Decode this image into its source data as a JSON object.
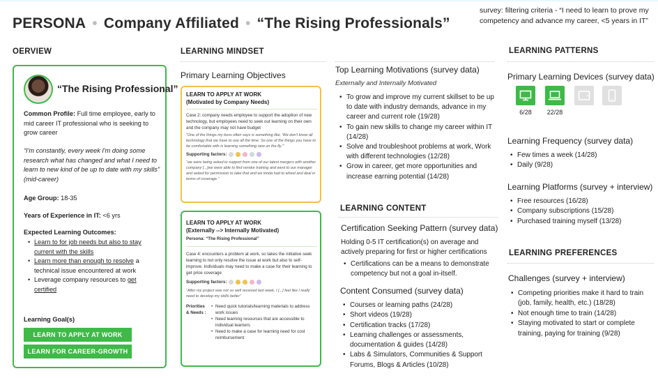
{
  "header": {
    "part1": "PERSONA",
    "part2": "Company Affiliated",
    "part3": "“The Rising Professionals”",
    "separator": "•",
    "survey_note": "survey: filtering criteria - “I need to learn to prove my competency and advance my career, <5 years in IT”"
  },
  "overview": {
    "heading": "OERVIEW",
    "name": "“The Rising Professional”",
    "common_profile_label": "Common Profile:",
    "common_profile_text": "Full time employee, early to mid career IT professional who is seeking to grow career",
    "quote": "“I'm constantly, every week I'm doing some research what has changed and what I need to learn to new kind of be up to date with my skills” (mid-career)",
    "age_label": "Age Group:",
    "age_value": "18-35",
    "years_label": "Years of Experience in IT:",
    "years_value": "<6 yrs",
    "outcomes_label": "Expected Learning Outcomes:",
    "outcomes": [
      {
        "a": "Learn to for job needs but ",
        "b": "also to stay current with the skills",
        "c": ""
      },
      {
        "a": "Learn more than enough to resolve",
        "b": "",
        "c": " a technical issue encountered at work"
      },
      {
        "a": "",
        "b": "",
        "c": "Leverage company resources to ",
        "d": "get certified"
      }
    ],
    "goals_label": "Learning Goal(s)",
    "goal_buttons": [
      "LEARN TO APPLY AT WORK",
      "LEARN FOR CAREER-GROWTH"
    ]
  },
  "mindset": {
    "heading": "LEARNING MINDSET",
    "objectives_title": "Primary Learning Objectives",
    "card1": {
      "title": "LEARN TO APPLY AT WORK",
      "subtitle": "(Motivated by Company Needs)",
      "case": "Case 2: company needs employee to support the adoption of new technology, but employees need to seek out learning on their own and the company may not have budget",
      "quote": "“One of the things my boss often says is something like, 'We don't know all technology that we have to use all the time. So one of the things you have to be comfortable with is learning something new on the fly.'”",
      "supporting_label": "Supporting factors:",
      "quote2": "“we were being asked to support from one of our latest mergers with another company [...]we were able to find vendor training and went to our manager and asked for permission to take that and we kinda had to wheel and deal in terms of coverage.”"
    },
    "card2": {
      "title": "LEARN TO APPLY AT WORK",
      "subtitle": "(Externally --> Internally Motivated)",
      "persona": "Persona: “The Rising Professional”",
      "case": "Case 4: encounters a problem at work, so takes the initiative seek learning to not only resolve the issue at work but also to self-improve. Individuals may need to make a case for their learning to get price coverage",
      "supporting_label": "Supporting factors:",
      "quote": "“After my project was not so well received last week, I [...] feel like I really need to develop my skills better”",
      "priorities_label": "Priorities & Needs :",
      "priorities": [
        "Need quick tutorials/learning materials to address work issues",
        "Need learning resources that are accessible to individual learners",
        "Need to make a case for learning need for cost reimbursement"
      ]
    }
  },
  "motivations": {
    "title": "Top Learning Motivations (survey data)",
    "subtitle": "Externally and Internally Motivated",
    "items": [
      "To grow and improve my current skillset to be up to date with industry demands, advance in my career and current role (19/28)",
      "To gain new skills to change my career within IT (14/28)",
      "Solve and troubleshoot problems at work, Work with different technologies (12/28)",
      "Grow in career, get more opportunities and increase earning potential (14/28)"
    ]
  },
  "content": {
    "heading": "LEARNING CONTENT",
    "cert_title": "Certification Seeking Pattern (survey data)",
    "cert_text": "Holding 0-5 IT certification(s) on average and actively preparing for first or higher certifications",
    "cert_items": [
      "Certifications can be a means to demonstrate competency but not a goal in-itself."
    ],
    "consumed_title": "Content Consumed (survey data)",
    "consumed_items": [
      "Courses or learning paths (24/28)",
      "Short videos (19/28)",
      "Certification tracks (17/28)",
      "Learning challenges or assessments, documentation & guides (14/28)",
      "Labs & Simulators, Communities & Support Forums, Blogs & Articles (10/28)"
    ]
  },
  "patterns": {
    "heading": "LEARNING PATTERNS",
    "devices_title": "Primary Learning Devices (survey data)",
    "devices": [
      {
        "icon": "desktop-icon",
        "count": "6/28"
      },
      {
        "icon": "laptop-icon",
        "count": "22/28"
      },
      {
        "icon": "tablet-icon",
        "count": ""
      },
      {
        "icon": "phone-icon",
        "count": ""
      }
    ],
    "frequency_title": "Learning Frequency (survey data)",
    "frequency_items": [
      "Few times a week (14/28)",
      "Daily (9/28)"
    ],
    "platforms_title": "Learning Platforms (survey + interview)",
    "platforms_items": [
      "Free resources (16/28)",
      "Company subscriptions (15/28)",
      "Purchased training myself (13/28)"
    ],
    "preferences_heading": "LEARNING PREFERENCES",
    "challenges_title": "Challenges (survey + interview)",
    "challenges_items": [
      "Competing priorities make it hard to train (job, family, health, etc.) (18/28)",
      "Not enough time to train  (14/28)",
      "Staying motivated to start or complete training, paying for training (9/28)"
    ]
  },
  "colors": {
    "green": "#3fb948",
    "yellow": "#f0c24a",
    "grey": "#e0e0e0"
  }
}
